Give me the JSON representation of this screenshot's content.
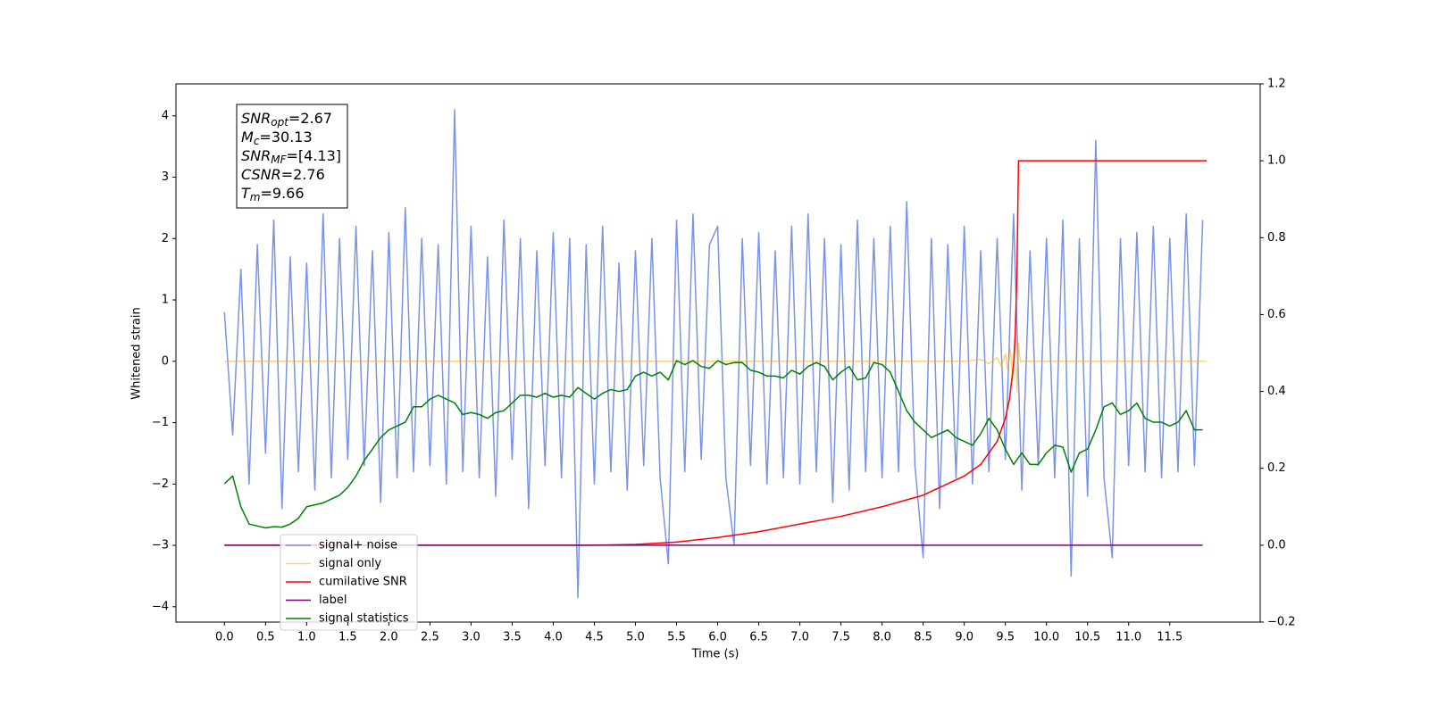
{
  "chart_data": {
    "type": "line",
    "xlabel": "Time (s)",
    "ylabel": "Whitened strain",
    "xlim": [
      -0.59,
      12.6
    ],
    "ylim": [
      -4.25,
      4.52
    ],
    "y2lim": [
      -0.2,
      1.2
    ],
    "xticks": [
      {
        "value": 0,
        "label": "0.0"
      },
      {
        "value": 0.5,
        "label": "0.5"
      },
      {
        "value": 1,
        "label": "1.0"
      },
      {
        "value": 1.5,
        "label": "1.5"
      },
      {
        "value": 2,
        "label": "2.0"
      },
      {
        "value": 2.5,
        "label": "2.5"
      },
      {
        "value": 3,
        "label": "3.0"
      },
      {
        "value": 3.5,
        "label": "3.5"
      },
      {
        "value": 4,
        "label": "4.0"
      },
      {
        "value": 4.5,
        "label": "4.5"
      },
      {
        "value": 5,
        "label": "5.0"
      },
      {
        "value": 5.5,
        "label": "5.5"
      },
      {
        "value": 6,
        "label": "6.0"
      },
      {
        "value": 6.5,
        "label": "6.5"
      },
      {
        "value": 7,
        "label": "7.0"
      },
      {
        "value": 7.5,
        "label": "7.5"
      },
      {
        "value": 8,
        "label": "8.0"
      },
      {
        "value": 8.5,
        "label": "8.5"
      },
      {
        "value": 9,
        "label": "9.0"
      },
      {
        "value": 9.5,
        "label": "9.5"
      },
      {
        "value": 10,
        "label": "10.0"
      },
      {
        "value": 10.5,
        "label": "10.5"
      },
      {
        "value": 11,
        "label": "11.0"
      },
      {
        "value": 11.5,
        "label": "11.5"
      }
    ],
    "yticks": [
      {
        "value": -4,
        "label": "−4"
      },
      {
        "value": -3,
        "label": "−3"
      },
      {
        "value": -2,
        "label": "−2"
      },
      {
        "value": -1,
        "label": "−1"
      },
      0,
      1,
      2,
      3,
      4
    ],
    "y2ticks": [
      {
        "value": -0.2,
        "label": "−0.2"
      },
      {
        "value": 0,
        "label": "0.0"
      },
      {
        "value": 0.2,
        "label": "0.2"
      },
      {
        "value": 0.4,
        "label": "0.4"
      },
      {
        "value": 0.6,
        "label": "0.6"
      },
      {
        "value": 0.8,
        "label": "0.8"
      },
      {
        "value": 1,
        "label": "1.0"
      },
      {
        "value": 1.2,
        "label": "1.2"
      }
    ],
    "annotation": [
      {
        "symbol": "SNR",
        "sub": "opt",
        "value": "=2.67"
      },
      {
        "symbol": "M",
        "sub": "c",
        "value": "=30.13"
      },
      {
        "symbol": "SNR",
        "sub": "MF",
        "value": "=[4.13]"
      },
      {
        "symbol": "CSNR",
        "sub": "",
        "value": "=2.76"
      },
      {
        "symbol": "T",
        "sub": "m",
        "value": "=9.66"
      }
    ],
    "x": [
      0,
      0.1,
      0.2,
      0.3,
      0.4,
      0.5,
      0.6,
      0.7,
      0.8,
      0.9,
      1,
      1.1,
      1.2,
      1.3,
      1.4,
      1.5,
      1.6,
      1.7,
      1.8,
      1.9,
      2,
      2.1,
      2.2,
      2.3,
      2.4,
      2.5,
      2.6,
      2.7,
      2.8,
      2.9,
      3,
      3.1,
      3.2,
      3.3,
      3.4,
      3.5,
      3.6,
      3.7,
      3.8,
      3.9,
      4,
      4.1,
      4.2,
      4.3,
      4.4,
      4.5,
      4.6,
      4.7,
      4.8,
      4.9,
      5,
      5.1,
      5.2,
      5.3,
      5.4,
      5.5,
      5.6,
      5.7,
      5.8,
      5.9,
      6,
      6.1,
      6.2,
      6.3,
      6.4,
      6.5,
      6.6,
      6.7,
      6.8,
      6.9,
      7,
      7.1,
      7.2,
      7.3,
      7.4,
      7.5,
      7.6,
      7.7,
      7.8,
      7.9,
      8,
      8.1,
      8.2,
      8.3,
      8.4,
      8.5,
      8.6,
      8.7,
      8.8,
      8.9,
      9,
      9.1,
      9.2,
      9.3,
      9.4,
      9.5,
      9.6,
      9.7,
      9.8,
      9.9,
      10,
      10.1,
      10.2,
      10.3,
      10.4,
      10.5,
      10.6,
      10.7,
      10.8,
      10.9,
      11,
      11.1,
      11.2,
      11.3,
      11.4,
      11.5,
      11.6,
      11.7,
      11.8,
      11.9
    ],
    "series": [
      {
        "name": "signal+ noise",
        "color": "#6b87e4",
        "values": [
          0.8,
          -1.2,
          1.5,
          -2.0,
          1.9,
          -1.5,
          2.3,
          -2.4,
          1.7,
          -1.8,
          1.6,
          -2.1,
          2.4,
          -1.9,
          2.0,
          -1.6,
          2.2,
          -1.7,
          1.8,
          -2.3,
          2.1,
          -1.9,
          2.5,
          -1.8,
          2.0,
          -1.7,
          1.9,
          -2.0,
          4.1,
          -1.8,
          2.2,
          -1.9,
          1.7,
          -2.2,
          2.3,
          -1.6,
          2.0,
          -2.4,
          1.8,
          -1.7,
          2.1,
          -1.9,
          2.0,
          -3.85,
          1.9,
          -2.0,
          2.2,
          -1.8,
          1.6,
          -2.1,
          1.8,
          -1.7,
          2.0,
          -1.9,
          -3.3,
          2.3,
          -1.8,
          2.4,
          -1.6,
          1.9,
          2.2,
          -1.9,
          -3.0,
          2.0,
          -1.7,
          2.1,
          -2.0,
          1.8,
          -1.9,
          2.2,
          -2.0,
          2.4,
          -1.8,
          2.0,
          -2.3,
          1.9,
          -2.1,
          2.3,
          -1.8,
          2.0,
          -1.9,
          2.2,
          -1.8,
          2.6,
          -1.7,
          -3.2,
          2.0,
          -2.4,
          1.9,
          -1.9,
          2.2,
          -2.0,
          1.8,
          -1.8,
          2.0,
          -1.6,
          2.4,
          -2.1,
          1.8,
          -1.7,
          2.0,
          -1.9,
          2.3,
          -3.5,
          2.0,
          -2.2,
          3.6,
          -1.9,
          -3.2,
          2.0,
          -1.7,
          2.1,
          -1.8,
          2.2,
          -1.9,
          2.0,
          -1.8,
          2.4,
          -1.7,
          2.3
        ]
      },
      {
        "name": "signal only",
        "color": "#ffa500",
        "x": [
          0,
          9.0,
          9.2,
          9.3,
          9.4,
          9.45,
          9.5,
          9.53,
          9.56,
          9.59,
          9.62,
          9.64,
          9.66,
          9.68,
          11.95
        ],
        "values": [
          0,
          0,
          0.03,
          -0.04,
          0.06,
          -0.08,
          0.12,
          -0.15,
          0.2,
          -0.3,
          0.45,
          -0.5,
          0.3,
          0,
          0
        ]
      },
      {
        "name": "cumilative SNR",
        "color": "#ff0000",
        "axis": "y2",
        "x": [
          0,
          4.5,
          5.0,
          5.5,
          6.0,
          6.5,
          7.0,
          7.5,
          8.0,
          8.5,
          9.0,
          9.2,
          9.4,
          9.5,
          9.55,
          9.6,
          9.62,
          9.64,
          9.65,
          9.66,
          11.95
        ],
        "values": [
          0,
          0,
          0.002,
          0.008,
          0.02,
          0.035,
          0.055,
          0.075,
          0.1,
          0.13,
          0.18,
          0.21,
          0.27,
          0.33,
          0.38,
          0.47,
          0.55,
          0.7,
          0.85,
          1.0,
          1.0
        ]
      },
      {
        "name": "label",
        "color": "#800080",
        "axis": "y2",
        "x": [
          0,
          11.9
        ],
        "values": [
          0,
          0
        ]
      },
      {
        "name": "signal statistics",
        "color": "#008000",
        "axis": "y2",
        "values": [
          0.16,
          0.18,
          0.1,
          0.055,
          0.05,
          0.045,
          0.048,
          0.047,
          0.055,
          0.07,
          0.1,
          0.105,
          0.11,
          0.12,
          0.13,
          0.15,
          0.18,
          0.22,
          0.25,
          0.28,
          0.3,
          0.31,
          0.32,
          0.36,
          0.36,
          0.38,
          0.39,
          0.38,
          0.37,
          0.34,
          0.345,
          0.34,
          0.33,
          0.345,
          0.35,
          0.37,
          0.39,
          0.39,
          0.385,
          0.395,
          0.385,
          0.39,
          0.385,
          0.41,
          0.395,
          0.38,
          0.395,
          0.405,
          0.4,
          0.405,
          0.44,
          0.45,
          0.44,
          0.45,
          0.43,
          0.48,
          0.47,
          0.48,
          0.465,
          0.46,
          0.48,
          0.47,
          0.475,
          0.475,
          0.455,
          0.45,
          0.44,
          0.44,
          0.435,
          0.455,
          0.445,
          0.465,
          0.475,
          0.465,
          0.43,
          0.45,
          0.465,
          0.43,
          0.435,
          0.475,
          0.47,
          0.45,
          0.4,
          0.35,
          0.32,
          0.3,
          0.28,
          0.29,
          0.3,
          0.28,
          0.27,
          0.26,
          0.29,
          0.33,
          0.3,
          0.25,
          0.21,
          0.24,
          0.21,
          0.21,
          0.24,
          0.26,
          0.255,
          0.19,
          0.24,
          0.25,
          0.3,
          0.36,
          0.37,
          0.34,
          0.35,
          0.37,
          0.33,
          0.32,
          0.32,
          0.31,
          0.32,
          0.35,
          0.3,
          0.3
        ]
      }
    ]
  }
}
